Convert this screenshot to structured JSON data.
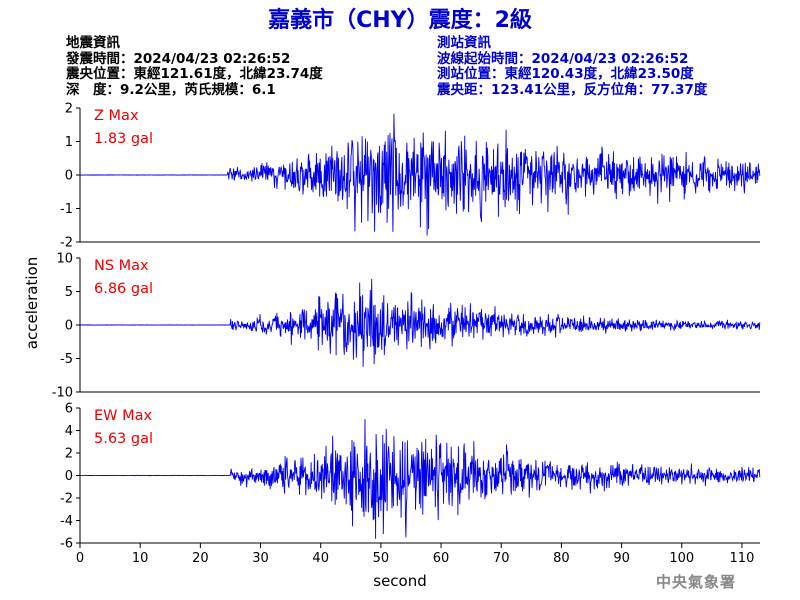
{
  "header": {
    "title": "嘉義市（CHY）震度：2級"
  },
  "quake_info": {
    "heading": "地震資訊",
    "origin_time": "發震時間：2024/04/23 02:26:52",
    "epicenter": "震央位置：東經121.61度，北緯23.74度",
    "depth_magnitude": "深　度：9.2公里，芮氏規模：6.1"
  },
  "station_info": {
    "heading": "測站資訊",
    "wave_start": "波線起始時間：2024/04/23 02:26:52",
    "station_location": "測站位置：東經120.43度，北緯23.50度",
    "distance_azimuth": "震央距：123.41公里，反方位角：77.37度"
  },
  "footer": {
    "agency": "中央氣象署"
  },
  "colors": {
    "title": "#0000cc",
    "trace": "#0000ee",
    "max_label": "#ee0000",
    "station_text": "#0000cc",
    "agency": "#888888"
  },
  "chart_data": {
    "type": "line",
    "xlabel": "second",
    "ylabel": "acceleration",
    "xlim": [
      0,
      113
    ],
    "x_ticks": [
      0,
      10,
      20,
      30,
      40,
      50,
      60,
      70,
      80,
      90,
      100,
      110
    ],
    "panels": [
      {
        "name": "Z",
        "max_title": "Z Max",
        "max_value": "1.83 gal",
        "ylim": [
          -2,
          2
        ],
        "y_ticks": [
          2,
          1,
          0,
          -1,
          -2
        ],
        "onset": 24.5,
        "peak_time": 52,
        "peak": 1.83,
        "decay": 70,
        "tail": 0.15
      },
      {
        "name": "NS",
        "max_title": "NS Max",
        "max_value": "6.86 gal",
        "ylim": [
          -10,
          10
        ],
        "y_ticks": [
          10,
          5,
          0,
          -5,
          -10
        ],
        "onset": 25,
        "peak_time": 48,
        "peak": 6.86,
        "decay": 35,
        "tail": 0.08
      },
      {
        "name": "EW",
        "max_title": "EW Max",
        "max_value": "5.63 gal",
        "ylim": [
          -6,
          6
        ],
        "y_ticks": [
          6,
          4,
          2,
          0,
          -2,
          -4,
          -6
        ],
        "onset": 25,
        "peak_time": 51,
        "peak": 5.63,
        "decay": 40,
        "tail": 0.1
      }
    ]
  }
}
